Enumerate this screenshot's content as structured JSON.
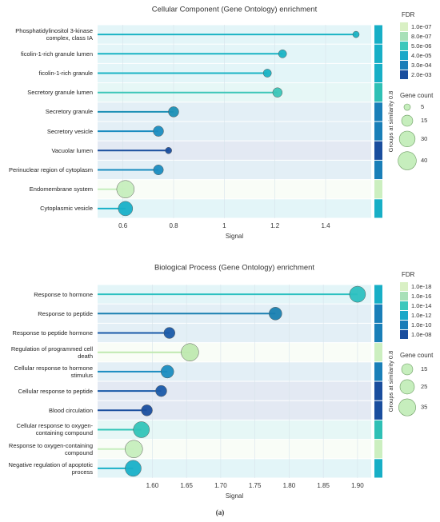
{
  "chart_data": [
    {
      "type": "lollipop",
      "title": "Cellular Component (Gene Ontology) enrichment",
      "x_label": "Signal",
      "categories": [
        "Phosphatidylinositol 3-kinase complex, class IA",
        "ficolin-1-rich granule lumen",
        "ficolin-1-rich granule",
        "Secretory granule lumen",
        "Secretory granule",
        "Secretory vesicle",
        "Vacuolar lumen",
        "Perinuclear region of cytoplasm",
        "Endomembrane system",
        "Cytoplasmic vesicle"
      ],
      "values": [
        1.52,
        1.23,
        1.17,
        1.21,
        0.8,
        0.74,
        0.78,
        0.74,
        0.61,
        0.61
      ],
      "sizes": [
        5,
        8,
        8,
        11,
        13,
        13,
        5,
        12,
        37,
        25
      ],
      "colors": [
        "#19b3c4",
        "#19b3c4",
        "#19b3c4",
        "#3cc6b8",
        "#1b8fb5",
        "#1a8cc0",
        "#1a4e9e",
        "#1a8cc0",
        "#c6eebd",
        "#18b0c8"
      ],
      "group_colors": [
        "#18afc6",
        "#18afc6",
        "#18afc6",
        "#2fc0b5",
        "#1a7fb8",
        "#1a7fb8",
        "#1a4e9e",
        "#1a7fb8",
        "#ccefc0",
        "#18afc6"
      ],
      "group_label": "Groups at similarity 0.8",
      "xlim": [
        0.5,
        1.58
      ],
      "xticks": [
        0.6,
        0.8,
        1.0,
        1.2,
        1.4
      ],
      "fdr_legend": {
        "title": "FDR",
        "labels": [
          "1.0e-07",
          "8.0e-07",
          "5.0e-06",
          "4.0e-05",
          "3.0e-04",
          "2.0e-03"
        ],
        "colors": [
          "#d9f0c4",
          "#a8e0b8",
          "#3cc8bc",
          "#1aa8c8",
          "#1a7db8",
          "#1a4e9e"
        ]
      },
      "size_legend": {
        "title": "Gene count",
        "values": [
          5,
          15,
          30,
          40
        ],
        "color": "#c6eebd"
      }
    },
    {
      "type": "lollipop",
      "title": "Biological Process (Gene Ontology) enrichment",
      "x_label": "Signal",
      "categories": [
        "Response to hormone",
        "Response to peptide",
        "Response to peptide hormone",
        "Regulation of programmed cell death",
        "Cellular response to hormone stimulus",
        "Cellular response to peptide",
        "Blood circulation",
        "Cellular response to oxygen-containing compound",
        "Response to oxygen-containing compound",
        "Negative regulation of apoptotic process"
      ],
      "values": [
        1.9,
        1.78,
        1.625,
        1.655,
        1.622,
        1.613,
        1.592,
        1.584,
        1.573,
        1.572
      ],
      "sizes": [
        31,
        20,
        15,
        37,
        20,
        15,
        15,
        31,
        37,
        31
      ],
      "colors": [
        "#2cc0c0",
        "#1a7fb0",
        "#1a5aa8",
        "#bfe9b0",
        "#1a8cc0",
        "#1a5aa8",
        "#1a4e9e",
        "#33c4b8",
        "#c6eebd",
        "#19b0c8"
      ],
      "group_colors": [
        "#18afc6",
        "#1a7fb8",
        "#1a7fb8",
        "#ccefc0",
        "#1a7fb8",
        "#1a4e9e",
        "#1a4e9e",
        "#2fc0b5",
        "#ccefc0",
        "#18afc6"
      ],
      "group_label": "Groups at similarity 0.8",
      "xlim": [
        1.52,
        1.92
      ],
      "xticks": [
        {
          "value": 1.6,
          "label": "1.60"
        },
        {
          "value": 1.65,
          "label": "1.65"
        },
        {
          "value": 1.7,
          "label": "1.70"
        },
        {
          "value": 1.75,
          "label": "1.75"
        },
        {
          "value": 1.8,
          "label": "1.80"
        },
        {
          "value": 1.85,
          "label": "1.85"
        },
        {
          "value": 1.9,
          "label": "1.90"
        }
      ],
      "fdr_legend": {
        "title": "FDR",
        "labels": [
          "1.0e-18",
          "1.0e-16",
          "1.0e-14",
          "1.0e-12",
          "1.0e-10",
          "1.0e-08"
        ],
        "colors": [
          "#d9f0c4",
          "#a8e0b8",
          "#3cc8bc",
          "#1aa8c8",
          "#1a7db8",
          "#1a4e9e"
        ]
      },
      "size_legend": {
        "title": "Gene count",
        "values": [
          15,
          25,
          35
        ],
        "color": "#c6eebd"
      }
    }
  ],
  "caption": "(a)"
}
